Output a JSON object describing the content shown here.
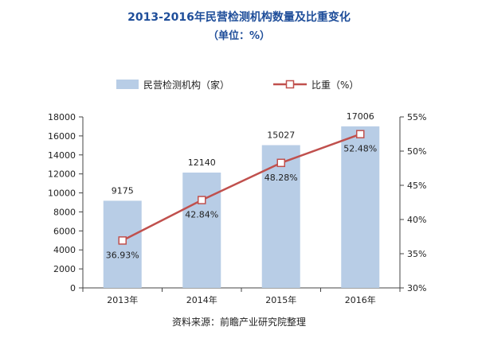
{
  "header": {
    "title": "2013-2016年民营检测机构数量及比重变化",
    "subtitle": "（单位：%）"
  },
  "footer": {
    "source": "资料来源：前瞻产业研究院整理"
  },
  "colors": {
    "bar": "#b8cde6",
    "line": "#c0504d",
    "axis": "#444444",
    "title": "#1f4e9a"
  },
  "chart_data": {
    "type": "bar+line",
    "categories": [
      "2013年",
      "2014年",
      "2015年",
      "2016年"
    ],
    "series": [
      {
        "name": "民营检测机构（家）",
        "type": "bar",
        "axis": "left",
        "values": [
          9175,
          12140,
          15027,
          17006
        ],
        "labels": [
          "9175",
          "12140",
          "15027",
          "17006"
        ]
      },
      {
        "name": "比重（%）",
        "type": "line",
        "axis": "right",
        "values": [
          36.93,
          42.84,
          48.28,
          52.48
        ],
        "labels": [
          "36.93%",
          "42.84%",
          "48.28%",
          "52.48%"
        ]
      }
    ],
    "y_left": {
      "min": 0,
      "max": 18000,
      "ticks": [
        0,
        2000,
        4000,
        6000,
        8000,
        10000,
        12000,
        14000,
        16000,
        18000
      ]
    },
    "y_right": {
      "min": 30,
      "max": 55,
      "ticks": [
        "30%",
        "35%",
        "40%",
        "45%",
        "50%",
        "55%"
      ]
    },
    "legend": "top"
  }
}
